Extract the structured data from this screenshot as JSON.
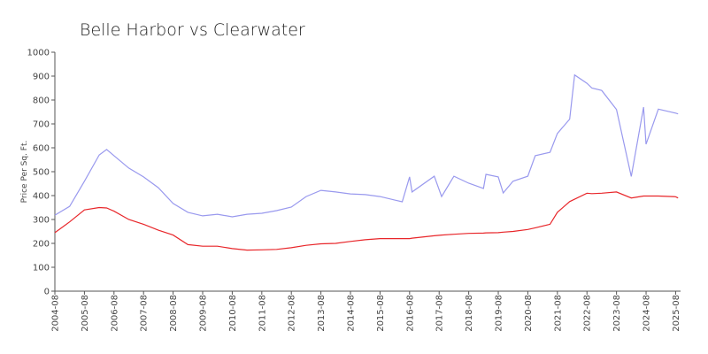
{
  "chart_data": {
    "type": "line",
    "title": "Belle Harbor vs Clearwater",
    "y_label": "Price Per Sq. Ft.",
    "x": [
      "2004-08",
      "2005-02",
      "2005-08",
      "2006-02",
      "2006-05",
      "2006-08",
      "2007-02",
      "2007-08",
      "2008-02",
      "2008-08",
      "2009-02",
      "2009-08",
      "2010-02",
      "2010-08",
      "2011-02",
      "2011-08",
      "2012-02",
      "2012-08",
      "2013-02",
      "2013-08",
      "2014-02",
      "2014-08",
      "2015-02",
      "2015-08",
      "2016-02",
      "2016-05",
      "2016-08",
      "2016-09",
      "2017-06",
      "2017-09",
      "2018-02",
      "2018-08",
      "2019-02",
      "2019-03",
      "2019-08",
      "2019-10",
      "2020-02",
      "2020-08",
      "2020-11",
      "2021-05",
      "2021-08",
      "2022-01",
      "2022-03",
      "2022-08",
      "2022-10",
      "2023-02",
      "2023-08",
      "2024-02",
      "2024-07",
      "2024-08",
      "2025-01",
      "2025-08",
      "2025-09"
    ],
    "series": [
      {
        "color": "#9999ee",
        "values": [
          318,
          355,
          460,
          570,
          593,
          567,
          515,
          478,
          433,
          367,
          330,
          315,
          322,
          311,
          322,
          326,
          337,
          352,
          396,
          422,
          415,
          407,
          404,
          396,
          381,
          374,
          478,
          415,
          481,
          396,
          481,
          452,
          430,
          489,
          478,
          411,
          460,
          481,
          567,
          581,
          660,
          720,
          905,
          870,
          850,
          840,
          760,
          480,
          770,
          615,
          762,
          745,
          742
        ]
      },
      {
        "color": "#e8262a",
        "values": [
          245,
          290,
          340,
          350,
          348,
          335,
          300,
          280,
          255,
          235,
          195,
          188,
          188,
          178,
          172,
          173,
          175,
          182,
          192,
          198,
          200,
          208,
          215,
          220,
          220,
          220,
          220,
          222,
          232,
          235,
          238,
          242,
          243,
          244,
          245,
          247,
          250,
          258,
          265,
          280,
          330,
          375,
          385,
          410,
          408,
          410,
          415,
          390,
          398,
          398,
          398,
          395,
          390
        ]
      }
    ],
    "xlim": [
      "2004-08",
      "2025-10"
    ],
    "xticks": [
      "2004-08",
      "2005-08",
      "2006-08",
      "2007-08",
      "2008-08",
      "2009-08",
      "2010-08",
      "2011-08",
      "2012-08",
      "2013-08",
      "2014-08",
      "2015-08",
      "2016-08",
      "2017-08",
      "2018-08",
      "2019-08",
      "2020-08",
      "2021-08",
      "2022-08",
      "2023-08",
      "2024-08",
      "2025-08"
    ],
    "ylim": [
      0,
      1000
    ],
    "yticks": [
      0,
      100,
      200,
      300,
      400,
      500,
      600,
      700,
      800,
      900,
      1000
    ]
  }
}
